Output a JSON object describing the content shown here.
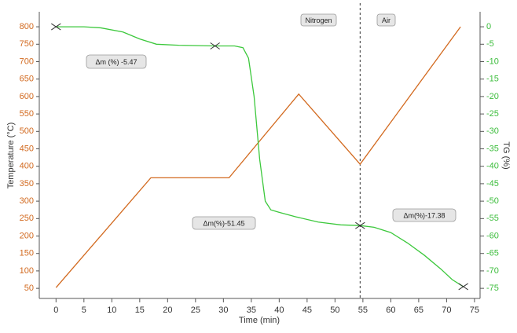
{
  "chart_data": {
    "type": "line",
    "x_label": "Time (min)",
    "y_label": "Temperature (°C)",
    "y2_label": "TG (%)",
    "xlim": [
      -3,
      76
    ],
    "xticks": [
      0,
      5,
      10,
      15,
      20,
      25,
      30,
      35,
      40,
      45,
      50,
      55,
      60,
      65,
      70,
      75
    ],
    "ylim": [
      21,
      843
    ],
    "yticks": [
      50,
      100,
      150,
      200,
      250,
      300,
      350,
      400,
      450,
      500,
      550,
      600,
      650,
      700,
      750,
      800
    ],
    "y2lim": [
      -77.9,
      4.3
    ],
    "y2ticks": [
      0,
      -5,
      -10,
      -15,
      -20,
      -25,
      -30,
      -35,
      -40,
      -45,
      -50,
      -55,
      -60,
      -65,
      -70,
      -75
    ],
    "y_color": "#d2691e",
    "y2_color": "#3cbd3c",
    "series": [
      {
        "color": "#d2691e",
        "axis": "y",
        "x": [
          0,
          17,
          31,
          43.5,
          54.5,
          72.5
        ],
        "values": [
          52,
          367,
          367,
          607,
          406,
          800
        ]
      },
      {
        "color": "#3cc83c",
        "axis": "y2",
        "x": [
          0,
          5,
          8,
          12,
          15,
          18,
          22,
          28.5,
          32,
          33.5,
          34.5,
          35.5,
          36.5,
          37.5,
          38.5,
          40,
          43,
          47,
          51,
          54.5,
          57,
          60,
          63,
          66,
          69,
          71,
          73
        ],
        "values": [
          0,
          0,
          -0.3,
          -1.5,
          -3.5,
          -5,
          -5.3,
          -5.5,
          -5.5,
          -6,
          -9,
          -20,
          -38,
          -50,
          -52.5,
          -53.2,
          -54.5,
          -56,
          -56.8,
          -57,
          -57.5,
          -59,
          -62,
          -65.5,
          -69.5,
          -72.5,
          -74.5
        ]
      }
    ],
    "markers": {
      "axis": "y2",
      "x": [
        0,
        28.5,
        54.5,
        73
      ],
      "values": [
        0,
        -5.5,
        -57,
        -74.5
      ]
    },
    "divider_x": 54.5,
    "annotations": [
      {
        "text": "Δm (%) -5.47"
      },
      {
        "text": "Δm(%)-51.45"
      },
      {
        "text": "Δm(%)-17.38"
      },
      {
        "text": "Nitrogen"
      },
      {
        "text": "Air"
      }
    ]
  }
}
